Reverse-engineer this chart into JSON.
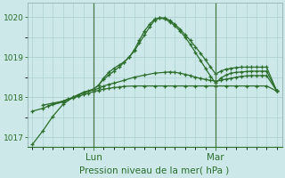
{
  "xlabel": "Pression niveau de la mer( hPa )",
  "ylim": [
    1016.75,
    1020.35
  ],
  "xlim": [
    -1,
    49
  ],
  "yticks": [
    1017,
    1018,
    1019,
    1020
  ],
  "ytick_labels": [
    "1017",
    "1018",
    "1019",
    "1020"
  ],
  "xtick_positions": [
    12,
    36
  ],
  "xtick_labels": [
    "Lun",
    "Mar"
  ],
  "bg_color": "#cce8e8",
  "grid_color": "#a8cccc",
  "line_color": "#2d6e2d",
  "vline_color": "#4a7a4a",
  "xlabel_fontsize": 7.5,
  "ytick_fontsize": 6.5,
  "xtick_fontsize": 7.5,
  "line1_x": [
    0,
    2,
    4,
    6,
    7,
    8,
    9,
    10,
    11,
    12,
    13,
    14,
    15,
    16,
    17,
    18,
    20,
    22,
    24,
    26,
    28,
    30,
    32,
    34,
    36,
    38,
    40,
    42,
    44,
    46,
    48
  ],
  "line1_y": [
    1017.65,
    1017.72,
    1017.82,
    1017.9,
    1017.95,
    1017.98,
    1018.02,
    1018.06,
    1018.1,
    1018.14,
    1018.17,
    1018.2,
    1018.22,
    1018.24,
    1018.25,
    1018.27,
    1018.28,
    1018.28,
    1018.28,
    1018.28,
    1018.28,
    1018.28,
    1018.28,
    1018.28,
    1018.28,
    1018.28,
    1018.28,
    1018.28,
    1018.28,
    1018.28,
    1018.15
  ],
  "line2_x": [
    0,
    2,
    4,
    6,
    8,
    10,
    11,
    12,
    13,
    14,
    15,
    16,
    18,
    20,
    22,
    24,
    26,
    27,
    28,
    29,
    30,
    31,
    32,
    33,
    34,
    35,
    36,
    37,
    38,
    39,
    40,
    41,
    42,
    43,
    44,
    45,
    46,
    48
  ],
  "line2_y": [
    1016.82,
    1017.15,
    1017.52,
    1017.82,
    1018.0,
    1018.12,
    1018.15,
    1018.18,
    1018.22,
    1018.28,
    1018.32,
    1018.35,
    1018.42,
    1018.5,
    1018.55,
    1018.6,
    1018.62,
    1018.63,
    1018.62,
    1018.6,
    1018.57,
    1018.54,
    1018.5,
    1018.47,
    1018.44,
    1018.42,
    1018.4,
    1018.42,
    1018.45,
    1018.47,
    1018.5,
    1018.52,
    1018.53,
    1018.54,
    1018.54,
    1018.54,
    1018.54,
    1018.15
  ],
  "line3_x": [
    2,
    4,
    6,
    8,
    10,
    12,
    13,
    14,
    15,
    16,
    17,
    18,
    19,
    20,
    21,
    22,
    23,
    24,
    25,
    26,
    27,
    28,
    29,
    30,
    31,
    32,
    33,
    34,
    35,
    36,
    37,
    38,
    39,
    40,
    41,
    42,
    43,
    44,
    45,
    46,
    48
  ],
  "line3_y": [
    1017.8,
    1017.85,
    1017.9,
    1018.0,
    1018.12,
    1018.2,
    1018.3,
    1018.45,
    1018.55,
    1018.65,
    1018.75,
    1018.87,
    1019.0,
    1019.15,
    1019.35,
    1019.55,
    1019.75,
    1019.92,
    1019.98,
    1019.98,
    1019.92,
    1019.82,
    1019.7,
    1019.56,
    1019.42,
    1019.26,
    1019.1,
    1018.93,
    1018.75,
    1018.58,
    1018.65,
    1018.7,
    1018.72,
    1018.74,
    1018.75,
    1018.75,
    1018.75,
    1018.75,
    1018.75,
    1018.75,
    1018.15
  ],
  "line4_x": [
    3,
    6,
    9,
    12,
    13,
    14,
    15,
    16,
    17,
    18,
    19,
    20,
    21,
    22,
    23,
    24,
    25,
    26,
    27,
    28,
    29,
    30,
    31,
    32,
    33,
    34,
    35,
    36,
    37,
    38,
    39,
    40,
    41,
    42,
    43,
    44,
    45,
    46,
    48
  ],
  "line4_y": [
    1017.78,
    1017.88,
    1018.05,
    1018.2,
    1018.3,
    1018.48,
    1018.62,
    1018.72,
    1018.8,
    1018.88,
    1019.0,
    1019.18,
    1019.42,
    1019.65,
    1019.82,
    1019.95,
    1019.98,
    1019.95,
    1019.88,
    1019.78,
    1019.65,
    1019.5,
    1019.32,
    1019.12,
    1018.92,
    1018.72,
    1018.52,
    1018.35,
    1018.48,
    1018.55,
    1018.6,
    1018.62,
    1018.63,
    1018.64,
    1018.65,
    1018.65,
    1018.65,
    1018.65,
    1018.15
  ]
}
